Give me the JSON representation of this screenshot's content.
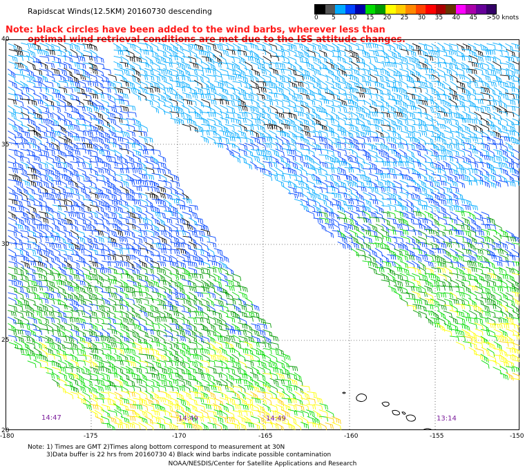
{
  "header": {
    "title": "Rapidscat Winds(12.5KM) 20160730 descending",
    "note_line1": "Note: black circles have been added to the wind barbs, wherever less than",
    "note_line2": "optimal wind retrieval conditions are met due to the ISS attitude changes."
  },
  "legend": {
    "colors": [
      "#000000",
      "#555555",
      "#00aaff",
      "#0044ff",
      "#0000aa",
      "#00dd00",
      "#009900",
      "#ffff00",
      "#ffcc00",
      "#ff8800",
      "#ff4400",
      "#ff0000",
      "#aa0000",
      "#663300",
      "#ff00ff",
      "#aa00aa",
      "#660099",
      "#330066"
    ],
    "labels": [
      "0",
      "5",
      "10",
      "15",
      "20",
      "25",
      "30",
      "35",
      "40",
      "45",
      ">50 knots"
    ]
  },
  "axes": {
    "lat_labels": [
      "40",
      "35",
      "30",
      "25",
      "20"
    ],
    "lon_labels": [
      "-180",
      "-175",
      "-170",
      "-165",
      "-160",
      "-155",
      "-150"
    ]
  },
  "passes": {
    "times": [
      "14:47",
      "14:49",
      "14:49",
      "13:14"
    ]
  },
  "footer": {
    "note_line1": "Note: 1) Times are GMT 2)Times along bottom correspond to measurement at 30N",
    "note_line2": "3)Data buffer is 22 hrs from 20160730 4) Black wind barbs indicate possible contamination",
    "credit": "NOAA/NESDIS/Center for Satellite Applications and Research"
  }
}
